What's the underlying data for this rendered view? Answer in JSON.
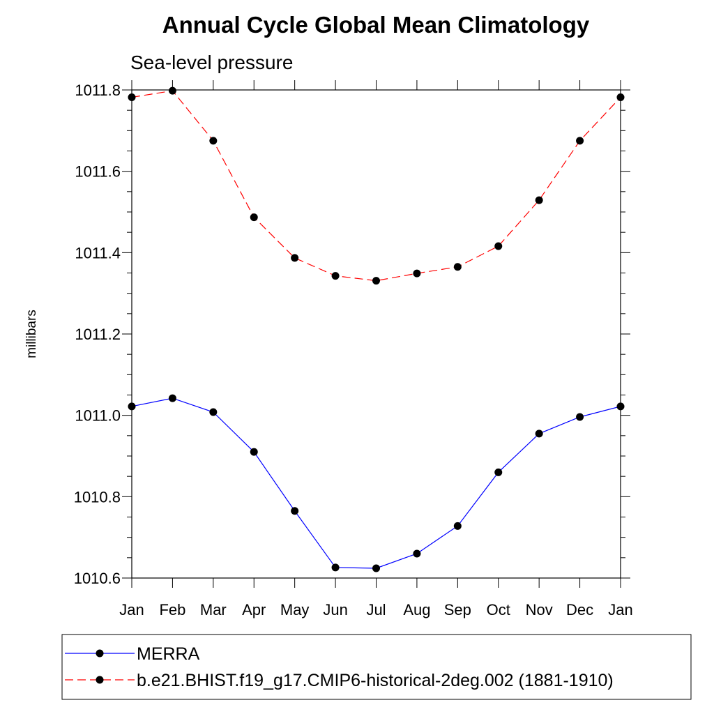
{
  "chart_data": {
    "type": "line",
    "title": "Annual Cycle Global Mean Climatology",
    "subtitle": "Sea-level pressure",
    "xlabel": "",
    "ylabel": "millibars",
    "categories": [
      "Jan",
      "Feb",
      "Mar",
      "Apr",
      "May",
      "Jun",
      "Jul",
      "Aug",
      "Sep",
      "Oct",
      "Nov",
      "Dec",
      "Jan"
    ],
    "ylim": [
      1010.6,
      1011.8
    ],
    "yticks": [
      "1010.6",
      "1010.8",
      "1011.0",
      "1011.2",
      "1011.4",
      "1011.6",
      "1011.8"
    ],
    "legend_position": "bottom",
    "series": [
      {
        "name": "MERRA",
        "color": "#0000ff",
        "line_style": "solid",
        "marker": "filled-circle",
        "values": [
          1011.022,
          1011.042,
          1011.008,
          1010.91,
          1010.765,
          1010.626,
          1010.624,
          1010.66,
          1010.728,
          1010.86,
          1010.955,
          1010.996,
          1011.022
        ]
      },
      {
        "name": "b.e21.BHIST.f19_g17.CMIP6-historical-2deg.002 (1881-1910)",
        "color": "#ff0000",
        "line_style": "dashed",
        "marker": "filled-circle",
        "values": [
          1011.782,
          1011.798,
          1011.675,
          1011.487,
          1011.387,
          1011.343,
          1011.331,
          1011.349,
          1011.365,
          1011.416,
          1011.529,
          1011.675,
          1011.782
        ]
      }
    ]
  }
}
